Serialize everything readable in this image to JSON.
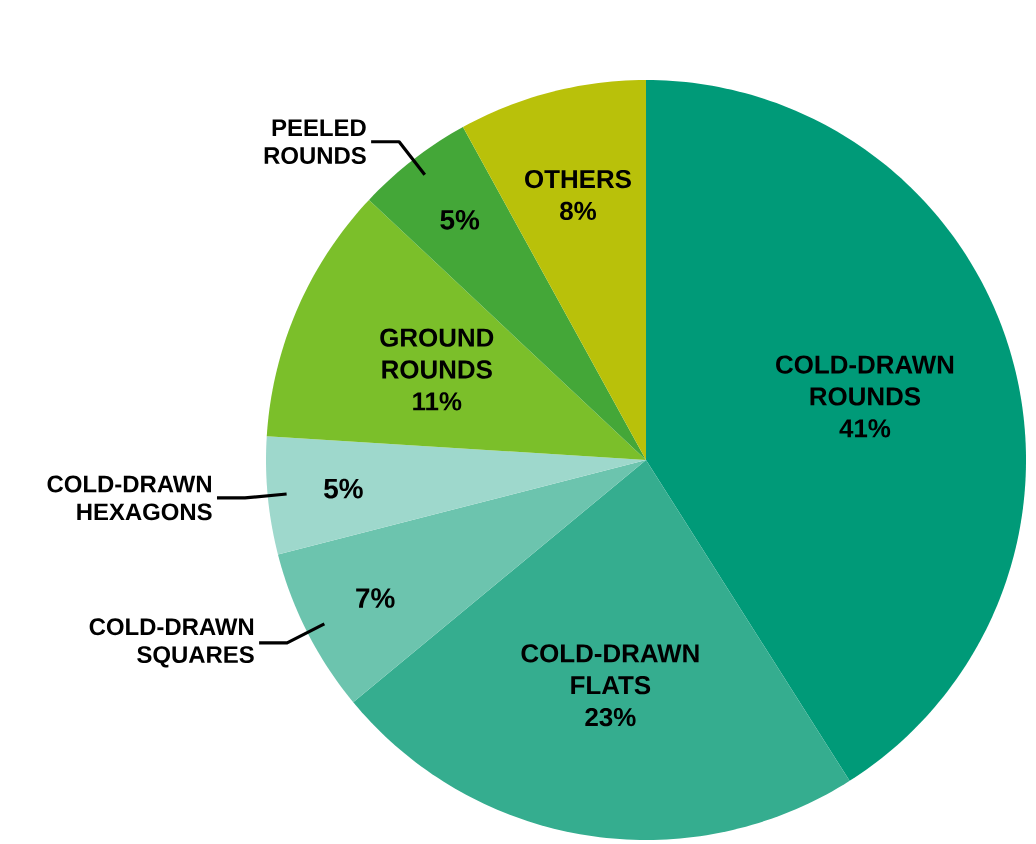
{
  "chart_data": {
    "type": "pie",
    "categories": [
      "COLD-DRAWN ROUNDS",
      "COLD-DRAWN FLATS",
      "COLD-DRAWN SQUARES",
      "COLD-DRAWN HEXAGONS",
      "GROUND ROUNDS",
      "PEELED ROUNDS",
      "OTHERS"
    ],
    "values": [
      41,
      23,
      7,
      5,
      11,
      5,
      8
    ],
    "value_labels": [
      "41%",
      "23%",
      "7%",
      "5%",
      "11%",
      "5%",
      "8%"
    ],
    "colors": [
      "#009a78",
      "#35ad8f",
      "#6cc4ae",
      "#9ed8cc",
      "#7bbf2a",
      "#44a738",
      "#b9c10a"
    ]
  }
}
